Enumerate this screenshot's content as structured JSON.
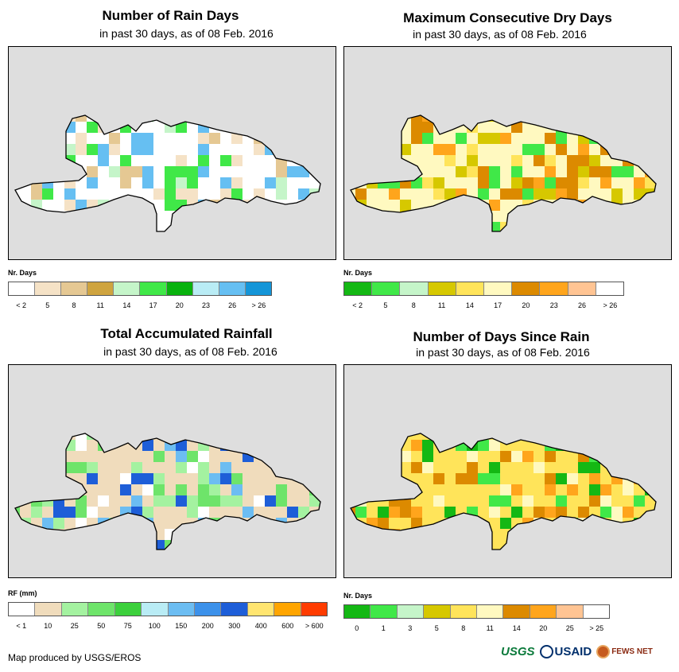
{
  "panels": [
    {
      "id": "rain-days",
      "title": "Number of Rain Days",
      "subtitle": "in past 30 days, as of 08 Feb. 2016",
      "legend_unit": "Nr. Days",
      "legend": {
        "colors": [
          "#ffffff",
          "#f5e2c6",
          "#e5c893",
          "#cfa43f",
          "#c5f5c9",
          "#40e848",
          "#08b20e",
          "#b9ecf5",
          "#66bff2",
          "#1495d8"
        ],
        "labels": [
          "< 2",
          "5",
          "8",
          "11",
          "14",
          "17",
          "20",
          "23",
          "26",
          "> 26"
        ]
      }
    },
    {
      "id": "max-dry-days",
      "title": "Maximum Consecutive Dry Days",
      "subtitle": "in past 30 days, as of 08 Feb. 2016",
      "legend_unit": "Nr. Days",
      "legend": {
        "colors": [
          "#14b814",
          "#40e848",
          "#c5f5c9",
          "#d6c800",
          "#ffe45a",
          "#fff9c0",
          "#dc8a00",
          "#ffa51c",
          "#ffc493",
          "#ffffff"
        ],
        "labels": [
          "< 2",
          "5",
          "8",
          "11",
          "14",
          "17",
          "20",
          "23",
          "26",
          "> 26"
        ]
      }
    },
    {
      "id": "total-rainfall",
      "title": "Total Accumulated Rainfall",
      "subtitle": "in past 30 days, as of 08 Feb. 2016",
      "legend_unit": "RF (mm)",
      "legend": {
        "colors": [
          "#ffffff",
          "#f0dcbc",
          "#a4f2a0",
          "#6ee46a",
          "#3cd03c",
          "#b9ecf5",
          "#6cbdf2",
          "#3c91ea",
          "#1e5ed8",
          "#ffe570",
          "#ffa500",
          "#ff3c00"
        ],
        "labels": [
          "< 1",
          "10",
          "25",
          "50",
          "75",
          "100",
          "150",
          "200",
          "300",
          "400",
          "600",
          "> 600"
        ]
      }
    },
    {
      "id": "days-since-rain",
      "title": "Number of Days Since Rain",
      "subtitle": "in past 30 days, as of 08 Feb. 2016",
      "legend_unit": "Nr. Days",
      "legend": {
        "colors": [
          "#14b814",
          "#40e848",
          "#c5f5c9",
          "#d6c800",
          "#ffe45a",
          "#fff9c0",
          "#dc8a00",
          "#ffa51c",
          "#ffc493",
          "#ffffff"
        ],
        "labels": [
          "0",
          "1",
          "3",
          "5",
          "8",
          "11",
          "14",
          "20",
          "25",
          "> 25"
        ]
      }
    }
  ],
  "credit": "Map produced by USGS/EROS",
  "logos": {
    "usgs": "USGS",
    "usaid": "USAID",
    "fews": "FEWS NET"
  }
}
